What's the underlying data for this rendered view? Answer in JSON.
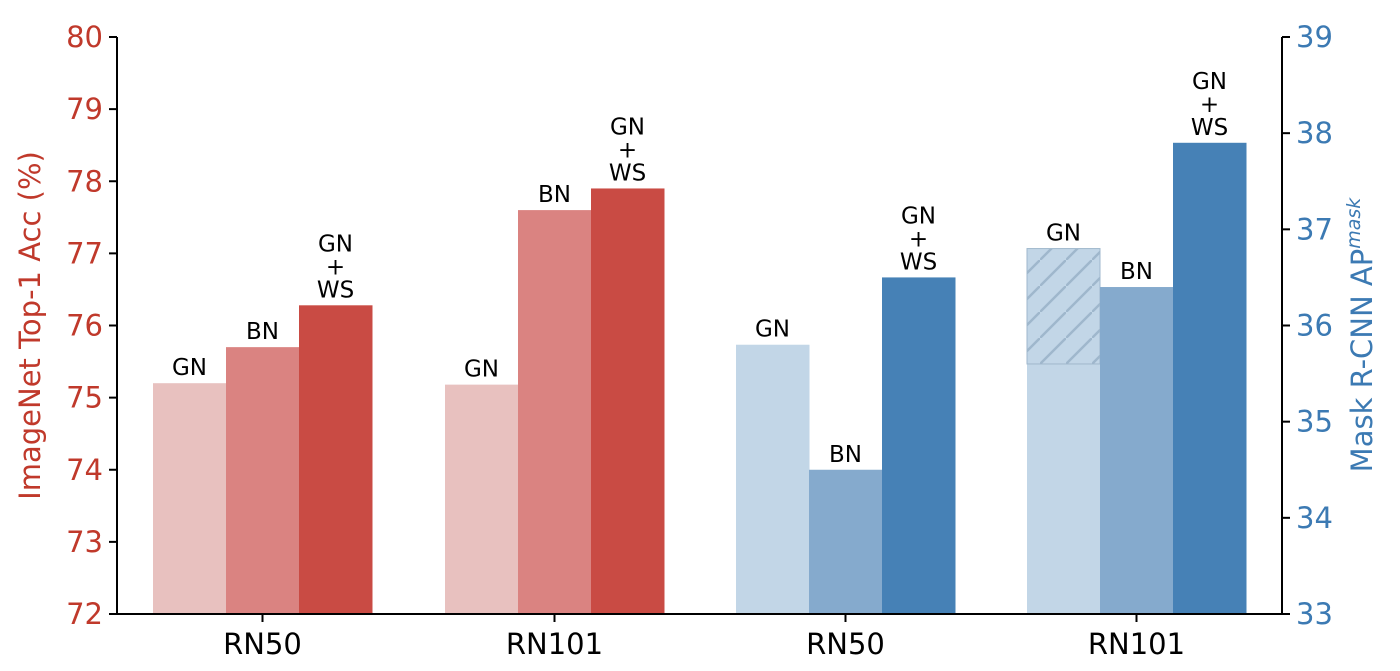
{
  "chart_data": {
    "type": "bar",
    "colors": {
      "left_axis": "#c44038",
      "right_axis": "#3d7bb5",
      "gn_red": "#e8c1bf",
      "bn_red": "#da8381",
      "gnws_red": "#c94b44",
      "gn_blue": "#c2d6e7",
      "bn_blue": "#85aacd",
      "gnws_blue": "#4681b6",
      "hatch": "#9fb7cc"
    },
    "left_axis": {
      "label": "ImageNet Top-1 Acc (%)",
      "ylim": [
        72,
        80
      ],
      "ticks": [
        "72",
        "73",
        "74",
        "75",
        "76",
        "77",
        "78",
        "79",
        "80"
      ]
    },
    "right_axis": {
      "label": "Mask R-CNN AP",
      "label_superscript": "mask",
      "ylim": [
        33,
        39
      ],
      "ticks": [
        "33",
        "34",
        "35",
        "36",
        "37",
        "38",
        "39"
      ]
    },
    "categories": [
      "RN50",
      "RN101",
      "RN50",
      "RN101"
    ],
    "groups": [
      {
        "category": "RN50",
        "axis": "left",
        "bars": [
          {
            "label": [
              "GN"
            ],
            "value": 75.2,
            "color_key": "gn_red"
          },
          {
            "label": [
              "BN"
            ],
            "value": 75.7,
            "color_key": "bn_red"
          },
          {
            "label": [
              "GN",
              "+",
              "WS"
            ],
            "value": 76.28,
            "color_key": "gnws_red"
          }
        ]
      },
      {
        "category": "RN101",
        "axis": "left",
        "bars": [
          {
            "label": [
              "GN"
            ],
            "value": 75.18,
            "color_key": "gn_red"
          },
          {
            "label": [
              "BN"
            ],
            "value": 77.6,
            "color_key": "bn_red"
          },
          {
            "label": [
              "GN",
              "+",
              "WS"
            ],
            "value": 77.9,
            "color_key": "gnws_red"
          }
        ]
      },
      {
        "category": "RN50",
        "axis": "right",
        "bars": [
          {
            "label": [
              "GN"
            ],
            "value": 35.8,
            "color_key": "gn_blue"
          },
          {
            "label": [
              "BN"
            ],
            "value": 34.5,
            "color_key": "bn_blue"
          },
          {
            "label": [
              "GN",
              "+",
              "WS"
            ],
            "value": 36.5,
            "color_key": "gnws_blue"
          }
        ]
      },
      {
        "category": "RN101",
        "axis": "right",
        "bars": [
          {
            "label": [
              "GN"
            ],
            "value": 35.6,
            "hatched_top": 36.8,
            "color_key": "gn_blue"
          },
          {
            "label": [
              "BN"
            ],
            "value": 36.4,
            "color_key": "bn_blue"
          },
          {
            "label": [
              "GN",
              "+",
              "WS"
            ],
            "value": 37.9,
            "color_key": "gnws_blue"
          }
        ]
      }
    ]
  }
}
